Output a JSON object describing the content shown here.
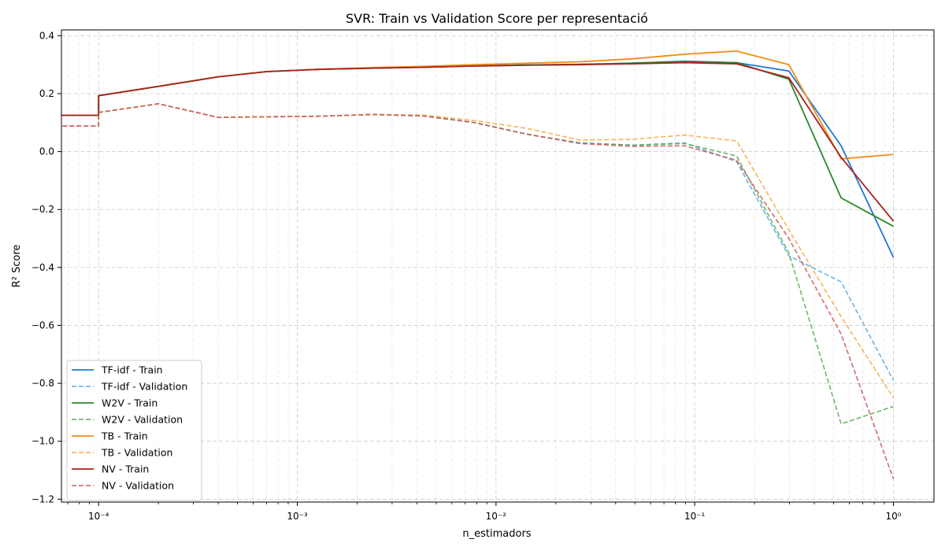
{
  "chart_data": {
    "type": "line",
    "title": "SVR: Train vs Validation Score per representació",
    "xlabel": "n_estimadors",
    "ylabel": "R² Score",
    "x_scale": "log",
    "xlim": [
      6.5e-05,
      1.6
    ],
    "ylim": [
      -1.21,
      0.42
    ],
    "x_ticks": [
      {
        "value": 0.0001,
        "label": "10⁻⁴"
      },
      {
        "value": 0.001,
        "label": "10⁻³"
      },
      {
        "value": 0.01,
        "label": "10⁻²"
      },
      {
        "value": 0.1,
        "label": "10⁻¹"
      },
      {
        "value": 1,
        "label": "10⁰"
      }
    ],
    "y_ticks": [
      {
        "value": 0.4,
        "label": "0.4"
      },
      {
        "value": 0.2,
        "label": "0.2"
      },
      {
        "value": 0.0,
        "label": "0.0"
      },
      {
        "value": -0.2,
        "label": "−0.2"
      },
      {
        "value": -0.4,
        "label": "−0.4"
      },
      {
        "value": -0.6,
        "label": "−0.6"
      },
      {
        "value": -0.8,
        "label": "−0.8"
      },
      {
        "value": -1.0,
        "label": "−1.0"
      },
      {
        "value": -1.2,
        "label": "−1.2"
      }
    ],
    "grid": true,
    "legend_position": "lower-left",
    "x": [
      1e-07,
      0.0001,
      0.0001,
      0.0002,
      0.0004,
      0.0007,
      0.0013,
      0.0024,
      0.0043,
      0.0078,
      0.0143,
      0.0263,
      0.0483,
      0.0887,
      0.1624,
      0.2976,
      0.5456,
      1.0
    ],
    "series": [
      {
        "name": "TF-idf - Train",
        "color": "#1f77d4",
        "dash": false,
        "values": [
          0.125,
          0.125,
          0.193,
          0.225,
          0.258,
          0.276,
          0.284,
          0.288,
          0.291,
          0.296,
          0.299,
          0.301,
          0.305,
          0.312,
          0.307,
          0.278,
          0.02,
          -0.365
        ]
      },
      {
        "name": "TF-idf - Validation",
        "color": "#5aaae8",
        "dash": true,
        "values": [
          0.088,
          0.088,
          0.135,
          0.165,
          0.118,
          0.12,
          0.122,
          0.128,
          0.123,
          0.1,
          0.06,
          0.03,
          0.022,
          0.03,
          -0.035,
          -0.36,
          -0.45,
          -0.79
        ]
      },
      {
        "name": "W2V - Train",
        "color": "#2a8a2a",
        "dash": false,
        "values": [
          0.125,
          0.125,
          0.193,
          0.225,
          0.258,
          0.276,
          0.284,
          0.288,
          0.291,
          0.296,
          0.299,
          0.301,
          0.305,
          0.31,
          0.307,
          0.25,
          -0.16,
          -0.258
        ]
      },
      {
        "name": "W2V - Validation",
        "color": "#5cae5c",
        "dash": true,
        "values": [
          0.088,
          0.088,
          0.135,
          0.165,
          0.118,
          0.12,
          0.122,
          0.128,
          0.123,
          0.1,
          0.06,
          0.03,
          0.022,
          0.028,
          -0.015,
          -0.35,
          -0.94,
          -0.88
        ]
      },
      {
        "name": "TB - Train",
        "color": "#f08c1a",
        "dash": false,
        "values": [
          0.125,
          0.125,
          0.193,
          0.225,
          0.258,
          0.276,
          0.284,
          0.29,
          0.294,
          0.3,
          0.305,
          0.31,
          0.32,
          0.336,
          0.347,
          0.3,
          -0.025,
          -0.01
        ]
      },
      {
        "name": "TB - Validation",
        "color": "#f8aa4a",
        "dash": true,
        "values": [
          0.088,
          0.088,
          0.135,
          0.165,
          0.118,
          0.12,
          0.122,
          0.128,
          0.126,
          0.107,
          0.08,
          0.04,
          0.042,
          0.057,
          0.037,
          -0.27,
          -0.57,
          -0.85
        ]
      },
      {
        "name": "NV - Train",
        "color": "#a8231f",
        "dash": false,
        "values": [
          0.125,
          0.125,
          0.193,
          0.225,
          0.258,
          0.276,
          0.284,
          0.288,
          0.291,
          0.295,
          0.298,
          0.3,
          0.303,
          0.307,
          0.303,
          0.255,
          -0.02,
          -0.24
        ]
      },
      {
        "name": "NV - Validation",
        "color": "#cc5a5a",
        "dash": true,
        "values": [
          0.088,
          0.088,
          0.135,
          0.165,
          0.118,
          0.12,
          0.122,
          0.128,
          0.123,
          0.1,
          0.06,
          0.028,
          0.018,
          0.02,
          -0.03,
          -0.3,
          -0.63,
          -1.13
        ]
      }
    ]
  }
}
